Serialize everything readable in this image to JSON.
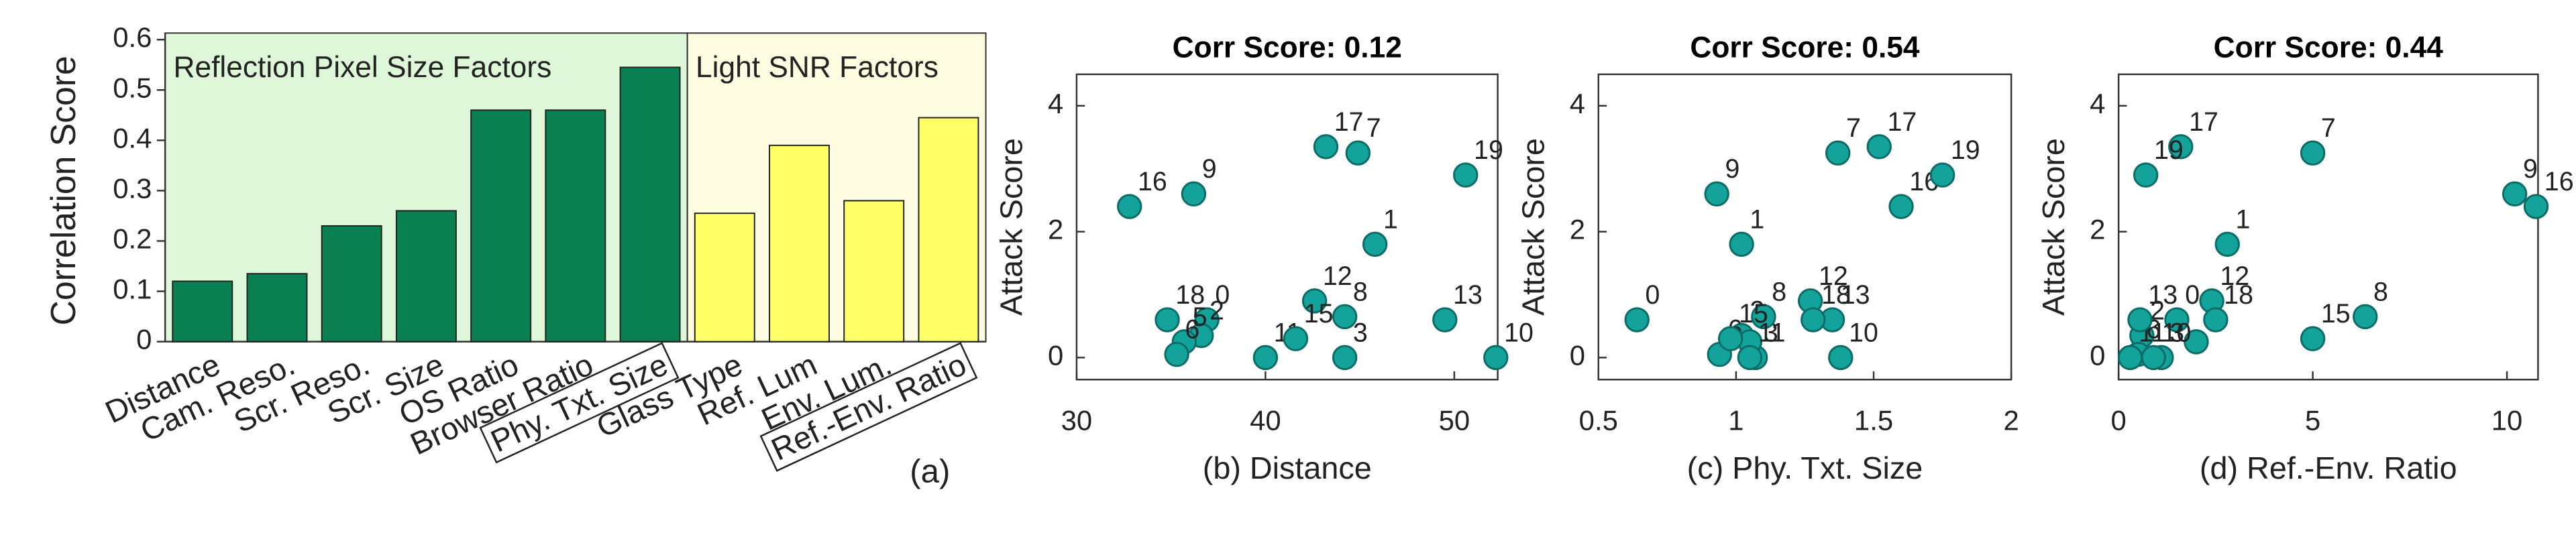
{
  "chart_data": [
    {
      "type": "bar",
      "ylabel": "Correlation Score",
      "annotation": "(a)",
      "categories": [
        "Distance",
        "Cam. Reso.",
        "Scr. Reso.",
        "Scr. Size",
        "OS Ratio",
        "Browser Ratio",
        "Phy. Txt. Size",
        "Glass Type",
        "Ref. Lum",
        "Env. Lum.",
        "Ref.-Env. Ratio"
      ],
      "values": [
        0.12,
        0.135,
        0.23,
        0.26,
        0.46,
        0.46,
        0.545,
        0.255,
        0.39,
        0.28,
        0.445
      ],
      "regions": [
        {
          "label": "Reflection Pixel Size Factors",
          "span": [
            0,
            6
          ],
          "bar_color": "#0a7f52",
          "background": "#dff7d9"
        },
        {
          "label": "Light SNR Factors",
          "span": [
            7,
            10
          ],
          "bar_color": "#ffff66",
          "background": "#fdfbe0"
        }
      ],
      "boxed_categories": [
        6,
        10
      ],
      "ylim": [
        0,
        0.6
      ],
      "yticks": [
        0,
        0.1,
        0.2,
        0.3,
        0.4,
        0.5,
        0.6
      ]
    },
    {
      "type": "scatter",
      "title": "Corr Score: 0.12",
      "xlabel": "(b) Distance",
      "ylabel": "Attack Score",
      "xlim": [
        30,
        52.3
      ],
      "xticks": [
        30,
        40,
        50
      ],
      "ylim": [
        -0.35,
        4.5
      ],
      "yticks": [
        0,
        2,
        4
      ],
      "series": [
        {
          "color": "#13a39b",
          "labels": [
            "0",
            "1",
            "2",
            "3",
            "5",
            "6",
            "7",
            "8",
            "9",
            "10",
            "11",
            "12",
            "13",
            "15",
            "16",
            "17",
            "18",
            "19"
          ],
          "x": [
            36.9,
            45.8,
            36.6,
            44.2,
            35.7,
            35.3,
            44.9,
            44.2,
            36.2,
            52.2,
            40,
            42.6,
            49.5,
            41.6,
            32.8,
            43.2,
            34.8,
            50.6
          ],
          "values": [
            0.6,
            1.8,
            0.35,
            0,
            0.25,
            0.05,
            3.25,
            0.65,
            2.6,
            0,
            0,
            0.9,
            0.6,
            0.3,
            2.4,
            3.35,
            0.6,
            2.9
          ]
        }
      ]
    },
    {
      "type": "scatter",
      "title": "Corr Score: 0.54",
      "xlabel": "(c) Phy. Txt. Size",
      "ylabel": "Attack Score",
      "xlim": [
        0.5,
        2
      ],
      "xticks": [
        0.5,
        1,
        1.5,
        2
      ],
      "ylim": [
        -0.35,
        4.5
      ],
      "yticks": [
        0,
        2,
        4
      ],
      "series": [
        {
          "color": "#13a39b",
          "labels": [
            "0",
            "1",
            "2",
            "3",
            "5",
            "6",
            "7",
            "8",
            "9",
            "10",
            "11",
            "12",
            "13",
            "15",
            "16",
            "17",
            "18",
            "19"
          ],
          "x": [
            0.64,
            1.02,
            1.02,
            1.07,
            1.05,
            0.94,
            1.37,
            1.1,
            0.93,
            1.38,
            1.05,
            1.27,
            1.35,
            0.98,
            1.6,
            1.52,
            1.28,
            1.75
          ],
          "values": [
            0.6,
            1.8,
            0.35,
            0,
            0.25,
            0.05,
            3.25,
            0.65,
            2.6,
            0,
            0,
            0.9,
            0.6,
            0.3,
            2.4,
            3.35,
            0.6,
            2.9
          ]
        }
      ]
    },
    {
      "type": "scatter",
      "title": "Corr Score: 0.44",
      "xlabel": "(d) Ref.-Env. Ratio",
      "ylabel": "Attack Score",
      "xlim": [
        0,
        10.8
      ],
      "xticks": [
        0,
        5,
        10
      ],
      "ylim": [
        -0.35,
        4.5
      ],
      "yticks": [
        0,
        2,
        4
      ],
      "series": [
        {
          "color": "#13a39b",
          "labels": [
            "0",
            "1",
            "2",
            "3",
            "5",
            "6",
            "7",
            "8",
            "9",
            "10",
            "11",
            "12",
            "13",
            "15",
            "16",
            "17",
            "18",
            "19"
          ],
          "x": [
            1.5,
            2.8,
            0.6,
            1.1,
            2.0,
            0.5,
            5.0,
            6.35,
            10.2,
            0.9,
            0.3,
            2.4,
            0.55,
            5.0,
            10.75,
            1.6,
            2.5,
            0.7
          ],
          "values": [
            0.6,
            1.8,
            0.35,
            0,
            0.25,
            0.05,
            3.25,
            0.65,
            2.6,
            0,
            0,
            0.9,
            0.6,
            0.3,
            2.4,
            3.35,
            0.6,
            2.9
          ]
        }
      ]
    }
  ]
}
